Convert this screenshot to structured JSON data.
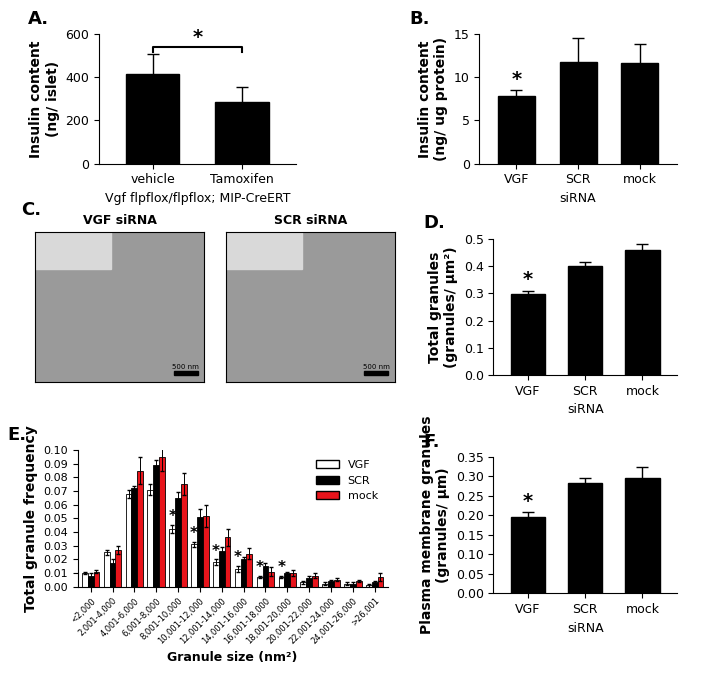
{
  "chart_data": [
    {
      "type": "bar",
      "label": "A.",
      "categories": [
        "vehicle",
        "Tamoxifen"
      ],
      "values": [
        415,
        285
      ],
      "errors": [
        95,
        70
      ],
      "color": "#000000",
      "y_label": "Insulin content\n(ng/ islet)",
      "x_label": "Vgf flpflox/flpflox; MIP-CreERT",
      "ylim": [
        0,
        600
      ],
      "yticks": [
        0,
        200,
        400,
        600
      ],
      "significance_bracket": {
        "text": "*",
        "between": [
          "vehicle",
          "Tamoxifen"
        ]
      }
    },
    {
      "type": "bar",
      "label": "B.",
      "categories": [
        "VGF",
        "SCR",
        "mock"
      ],
      "values": [
        7.8,
        11.8,
        11.6
      ],
      "errors": [
        0.7,
        2.8,
        2.2
      ],
      "color": "#000000",
      "significance": [
        "*",
        null,
        null
      ],
      "y_label": "Insulin content\n(ng/ ug protein)",
      "x_label": "siRNA",
      "ylim": [
        0,
        15
      ],
      "yticks": [
        0,
        5,
        10,
        15
      ]
    },
    {
      "type": "bar",
      "label": "D.",
      "categories": [
        "VGF",
        "SCR",
        "mock"
      ],
      "values": [
        0.297,
        0.401,
        0.459
      ],
      "errors": [
        0.012,
        0.015,
        0.022
      ],
      "color": "#000000",
      "significance": [
        "*",
        null,
        null
      ],
      "y_label": "Total granules\n(granules/ µm²)",
      "x_label": "siRNA",
      "ylim": [
        0,
        0.5
      ],
      "yticks": [
        {
          "value": 0,
          "label": "0.0"
        },
        {
          "value": 0.1,
          "label": "0.1"
        },
        {
          "value": 0.2,
          "label": "0.2"
        },
        {
          "value": 0.3,
          "label": "0.3"
        },
        {
          "value": 0.4,
          "label": "0.4"
        },
        {
          "value": 0.5,
          "label": "0.5"
        }
      ]
    },
    {
      "type": "grouped_bar",
      "label": "E.",
      "categories": [
        "<2,000",
        "2,001-4,000",
        "4,001-6,000",
        "6,001-8,000",
        "8,001-10,000",
        "10,001-12,000",
        "12,001-14,000",
        "14,001-16,000",
        "16,001-18,000",
        "18,001-20,000",
        "20,001-22,000",
        "22,001-24,000",
        "24,001-26,000",
        ">26,001"
      ],
      "series": [
        {
          "name": "VGF",
          "color": "#ffffff",
          "values": [
            0.01,
            0.025,
            0.068,
            0.071,
            0.042,
            0.031,
            0.018,
            0.013,
            0.007,
            0.007,
            0.003,
            0.002,
            0.002,
            0.001
          ],
          "errors": [
            0.001,
            0.002,
            0.003,
            0.004,
            0.003,
            0.002,
            0.002,
            0.002,
            0.001,
            0.001,
            0.001,
            0.001,
            0.001,
            0.001
          ],
          "significance": [
            null,
            null,
            null,
            null,
            "*",
            "*",
            "*",
            "*",
            "*",
            "*",
            null,
            null,
            null,
            null
          ]
        },
        {
          "name": "SCR",
          "color": "#000000",
          "values": [
            0.008,
            0.017,
            0.072,
            0.089,
            0.065,
            0.051,
            0.026,
            0.02,
            0.015,
            0.01,
            0.006,
            0.004,
            0.002,
            0.003
          ],
          "errors": [
            0.002,
            0.003,
            0.002,
            0.004,
            0.004,
            0.006,
            0.003,
            0.002,
            0.002,
            0.001,
            0.002,
            0.001,
            0.001,
            0.001
          ]
        },
        {
          "name": "mock",
          "color": "#e8141b",
          "values": [
            0.011,
            0.027,
            0.085,
            0.095,
            0.075,
            0.052,
            0.036,
            0.024,
            0.011,
            0.01,
            0.008,
            0.005,
            0.004,
            0.007
          ],
          "errors": [
            0.001,
            0.003,
            0.01,
            0.01,
            0.008,
            0.008,
            0.006,
            0.004,
            0.003,
            0.002,
            0.002,
            0.001,
            0.001,
            0.003
          ]
        }
      ],
      "y_label": "Total granule frequency",
      "x_label": "Granule size (nm²)",
      "ylim": [
        0,
        0.1
      ],
      "legend": "upper right",
      "yticks": [
        {
          "value": 0,
          "label": "0.00"
        },
        {
          "value": 0.01,
          "label": "0.01"
        },
        {
          "value": 0.02,
          "label": "0.02"
        },
        {
          "value": 0.03,
          "label": "0.03"
        },
        {
          "value": 0.04,
          "label": "0.04"
        },
        {
          "value": 0.05,
          "label": "0.05"
        },
        {
          "value": 0.06,
          "label": "0.06"
        },
        {
          "value": 0.07,
          "label": "0.07"
        },
        {
          "value": 0.08,
          "label": "0.08"
        },
        {
          "value": 0.09,
          "label": "0.09"
        },
        {
          "value": 0.1,
          "label": "0.10"
        }
      ]
    },
    {
      "type": "bar",
      "label": "F.",
      "categories": [
        "VGF",
        "SCR",
        "mock"
      ],
      "values": [
        0.197,
        0.284,
        0.295
      ],
      "errors": [
        0.012,
        0.012,
        0.03
      ],
      "color": "#000000",
      "significance": [
        "*",
        null,
        null
      ],
      "y_label": "Plasma membrane granules\n(granules/ µm)",
      "x_label": "siRNA",
      "ylim": [
        0,
        0.35
      ],
      "yticks": [
        {
          "value": 0,
          "label": "0.00"
        },
        {
          "value": 0.05,
          "label": "0.05"
        },
        {
          "value": 0.1,
          "label": "0.10"
        },
        {
          "value": 0.15,
          "label": "0.15"
        },
        {
          "value": 0.2,
          "label": "0.20"
        },
        {
          "value": 0.25,
          "label": "0.25"
        },
        {
          "value": 0.3,
          "label": "0.30"
        },
        {
          "value": 0.35,
          "label": "0.35"
        }
      ]
    }
  ],
  "image_panel": {
    "label": "C.",
    "images": [
      {
        "title": "VGF siRNA",
        "scale_bar": "500 nm"
      },
      {
        "title": "SCR siRNA",
        "scale_bar": "500 nm"
      }
    ]
  }
}
